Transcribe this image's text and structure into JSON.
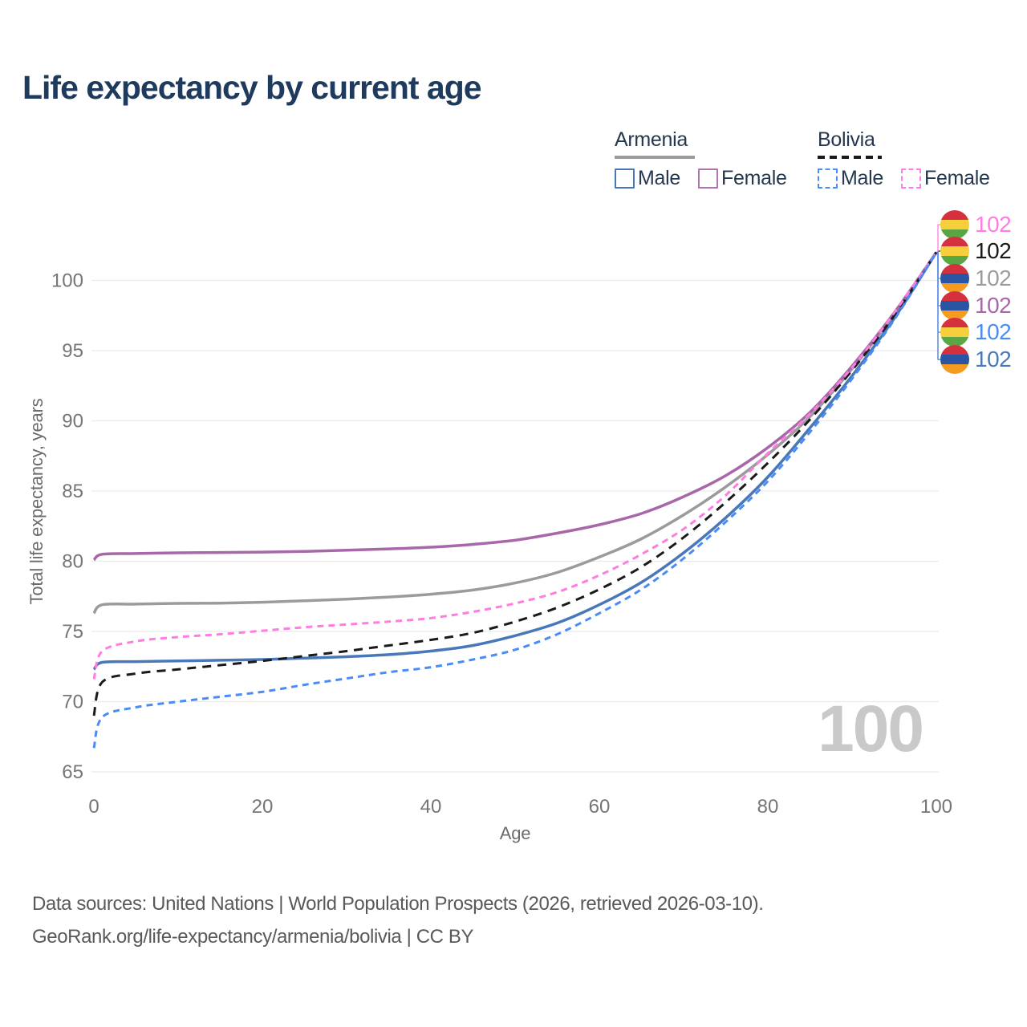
{
  "title": "Life expectancy by current age",
  "legend": {
    "groups": [
      {
        "name": "Armenia",
        "line_style": "solid",
        "line_color": "#9b9b9b",
        "items": [
          {
            "label": "Male",
            "color": "#4878ba",
            "style": "solid"
          },
          {
            "label": "Female",
            "color": "#b173ae",
            "style": "solid"
          }
        ]
      },
      {
        "name": "Bolivia",
        "line_style": "dashed",
        "line_color": "#1a1a1a",
        "items": [
          {
            "label": "Male",
            "color": "#4a8cf7",
            "style": "dashed"
          },
          {
            "label": "Female",
            "color": "#ff7ce0",
            "style": "dashed"
          }
        ]
      }
    ]
  },
  "y_axis": {
    "label": "Total life expectancy, years",
    "ticks": [
      65,
      70,
      75,
      80,
      85,
      90,
      95,
      100
    ]
  },
  "x_axis": {
    "label": "Age",
    "ticks": [
      0,
      20,
      40,
      60,
      80,
      100
    ]
  },
  "watermark": "100",
  "flags": {
    "armenia": [
      "#d5303e",
      "#2a55a5",
      "#f59b20"
    ],
    "bolivia": [
      "#d5303e",
      "#f7cf3d",
      "#5aa544"
    ]
  },
  "end_labels": [
    {
      "flag": "bolivia",
      "series": "Bolivia Female",
      "value": "102",
      "color": "#ff7ce0"
    },
    {
      "flag": "bolivia",
      "series": "Bolivia Both sexes",
      "value": "102",
      "color": "#1a1a1a"
    },
    {
      "flag": "armenia",
      "series": "Armenia Both sexes",
      "value": "102",
      "color": "#9b9b9b"
    },
    {
      "flag": "armenia",
      "series": "Armenia Female",
      "value": "102",
      "color": "#a767a9"
    },
    {
      "flag": "bolivia",
      "series": "Bolivia Male",
      "value": "102",
      "color": "#4a8cf7"
    },
    {
      "flag": "armenia",
      "series": "Armenia Male",
      "value": "102",
      "color": "#4878ba"
    }
  ],
  "chart_data": {
    "type": "line",
    "title": "Life expectancy by current age",
    "xlabel": "Age",
    "ylabel": "Total life expectancy, years",
    "xlim": [
      0,
      100
    ],
    "ylim": [
      65,
      102
    ],
    "grid": "horizontal",
    "legend_position": "top-right",
    "x": [
      0,
      1,
      5,
      10,
      15,
      20,
      25,
      30,
      35,
      40,
      45,
      50,
      55,
      60,
      65,
      70,
      75,
      80,
      85,
      90,
      95,
      100
    ],
    "series": [
      {
        "name": "Armenia Both sexes",
        "color": "#9b9b9b",
        "dash": "solid",
        "label_index": 2,
        "values": [
          76.3,
          76.9,
          76.95,
          77.0,
          77.02,
          77.08,
          77.18,
          77.3,
          77.45,
          77.65,
          77.95,
          78.45,
          79.2,
          80.3,
          81.6,
          83.3,
          85.3,
          87.6,
          90.3,
          93.7,
          97.6,
          102
        ]
      },
      {
        "name": "Armenia Female",
        "color": "#a767a9",
        "dash": "solid",
        "label_index": 3,
        "values": [
          80.1,
          80.5,
          80.55,
          80.6,
          80.62,
          80.65,
          80.7,
          80.78,
          80.88,
          81.0,
          81.2,
          81.5,
          82.0,
          82.6,
          83.4,
          84.6,
          86.1,
          88.1,
          90.6,
          93.9,
          97.7,
          102
        ]
      },
      {
        "name": "Armenia Male",
        "color": "#4878ba",
        "dash": "solid",
        "label_index": 5,
        "values": [
          72.3,
          72.8,
          72.85,
          72.9,
          72.95,
          73.0,
          73.1,
          73.2,
          73.35,
          73.6,
          74.0,
          74.7,
          75.6,
          76.9,
          78.5,
          80.6,
          83.1,
          86.0,
          89.5,
          93.2,
          97.3,
          102
        ]
      },
      {
        "name": "Bolivia Both sexes",
        "color": "#1a1a1a",
        "dash": "dashed",
        "label_index": 1,
        "values": [
          69.0,
          71.4,
          72.0,
          72.3,
          72.6,
          72.9,
          73.25,
          73.6,
          74.0,
          74.4,
          74.9,
          75.7,
          76.7,
          78.0,
          79.6,
          81.7,
          84.2,
          87.0,
          90.1,
          93.6,
          97.5,
          102
        ]
      },
      {
        "name": "Bolivia Female",
        "color": "#ff7ce0",
        "dash": "dashed",
        "label_index": 0,
        "values": [
          71.6,
          73.6,
          74.3,
          74.6,
          74.8,
          75.05,
          75.3,
          75.5,
          75.7,
          75.95,
          76.4,
          77.0,
          77.8,
          79.0,
          80.5,
          82.3,
          84.7,
          87.7,
          90.5,
          93.8,
          97.7,
          102
        ]
      },
      {
        "name": "Bolivia Male",
        "color": "#4a8cf7",
        "dash": "dashed",
        "label_index": 4,
        "values": [
          66.7,
          68.9,
          69.6,
          70.0,
          70.35,
          70.7,
          71.2,
          71.65,
          72.1,
          72.45,
          73.0,
          73.7,
          74.8,
          76.3,
          78.0,
          80.2,
          82.8,
          85.7,
          89.2,
          93.0,
          97.2,
          102
        ]
      }
    ]
  },
  "footer": {
    "line1": "Data sources: United Nations | World Population Prospects (2026, retrieved 2026-03-10).",
    "line2": "GeoRank.org/life-expectancy/armenia/bolivia | CC BY"
  }
}
